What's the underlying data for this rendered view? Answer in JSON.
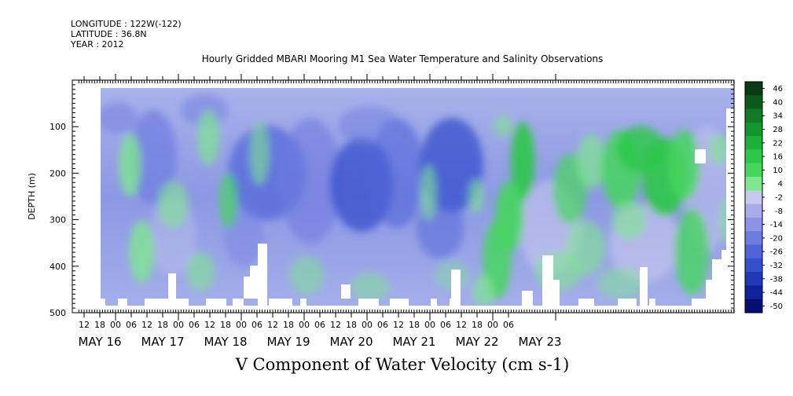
{
  "header": {
    "longitude": "LONGITUDE : 122W(-122)",
    "latitude": "LATITUDE : 36.8N",
    "year": "YEAR : 2012"
  },
  "chart_data": {
    "type": "heatmap",
    "title": "Hourly Gridded MBARI Mooring M1 Sea Water Temperature and Salinity Observations",
    "variable_label": "V Component of Water Velocity (cm s-1)",
    "ylabel": "DEPTH (m)",
    "y_axis": {
      "range": [
        500,
        0
      ],
      "inverted": true,
      "ticks": [
        100,
        200,
        300,
        400,
        500
      ]
    },
    "x_axis": {
      "hour_ticks": [
        "12",
        "18",
        "00",
        "06",
        "12",
        "18",
        "00",
        "06",
        "12",
        "18",
        "00",
        "06",
        "12",
        "18",
        "00",
        "06",
        "12",
        "18",
        "00",
        "06",
        "12",
        "18",
        "00",
        "06",
        "12",
        "18",
        "00",
        "06"
      ],
      "day_labels": [
        "MAY 16",
        "MAY 17",
        "MAY 18",
        "MAY 19",
        "MAY 20",
        "MAY 21",
        "MAY 22",
        "MAY 23"
      ]
    },
    "colorbar": {
      "levels": [
        46,
        40,
        34,
        28,
        22,
        16,
        10,
        4,
        -2,
        -8,
        -14,
        -20,
        -26,
        -32,
        -38,
        -44,
        -50
      ],
      "colors_high_to_low": [
        "#0a3a12",
        "#0c5a1a",
        "#107a24",
        "#14962e",
        "#1bb23a",
        "#2cc848",
        "#46d65e",
        "#7ee690",
        "#c8c8ee",
        "#a8aaea",
        "#8c92e6",
        "#6e7ce0",
        "#4e64d8",
        "#3450cc",
        "#2038b8",
        "#10229a",
        "#060e70"
      ]
    },
    "grid": false
  }
}
